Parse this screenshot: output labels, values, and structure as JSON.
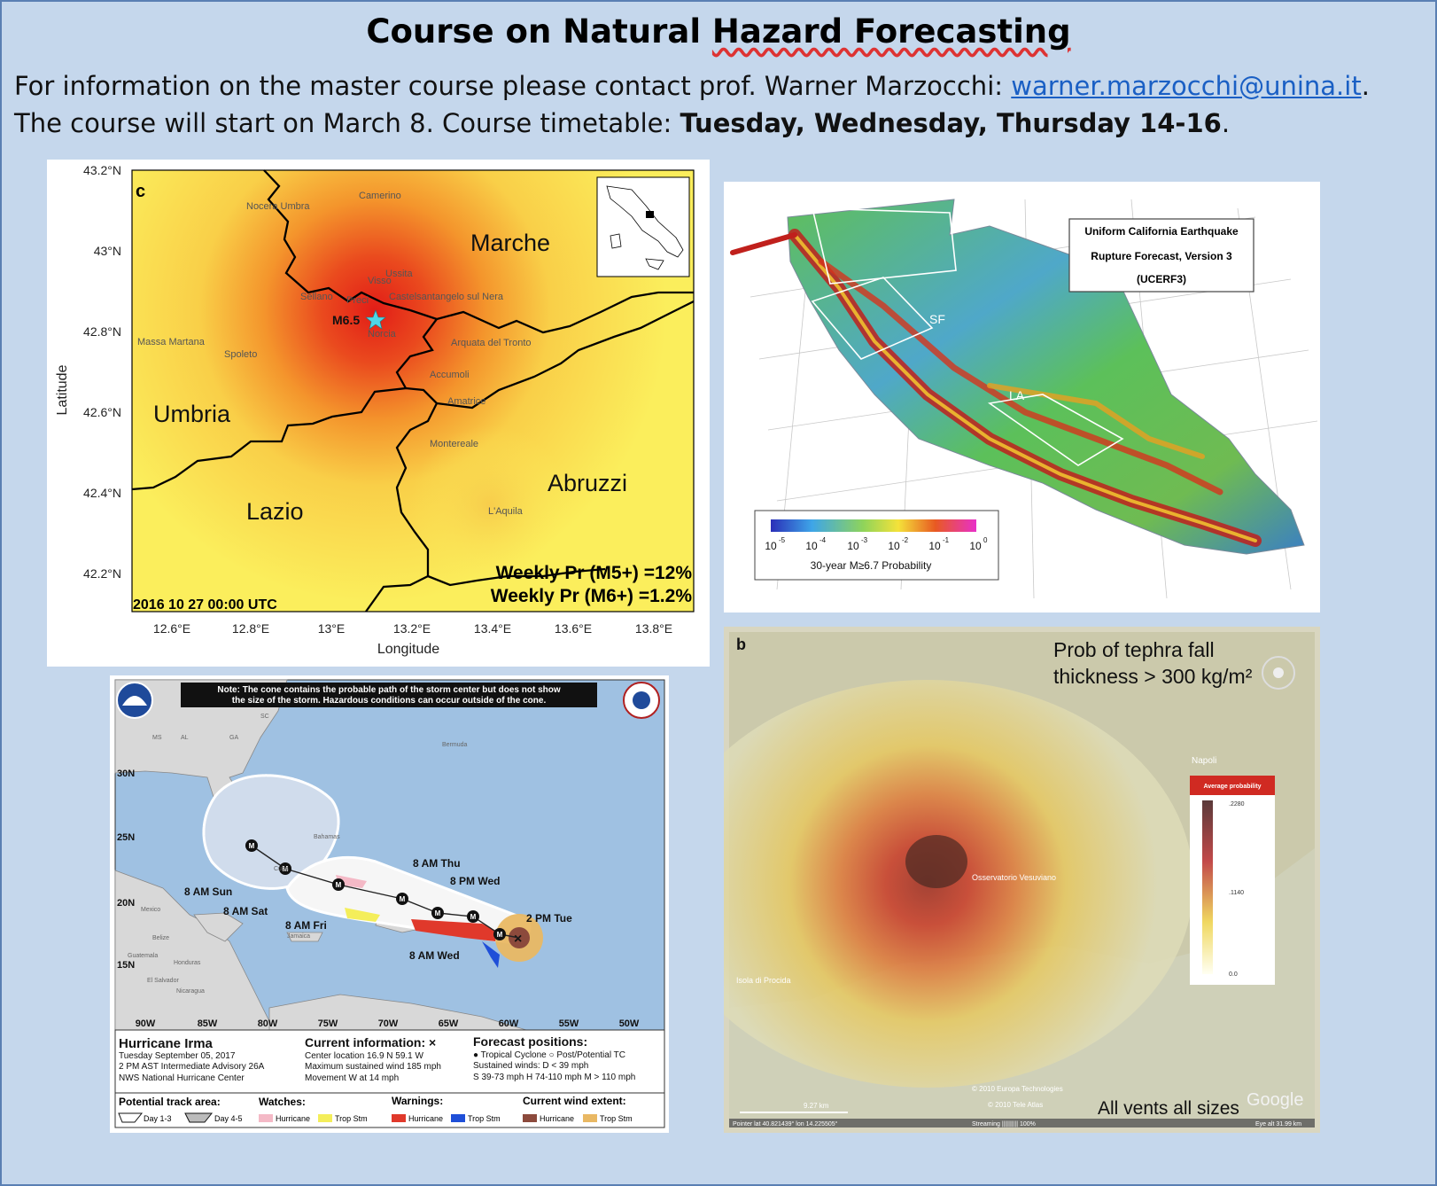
{
  "header": {
    "title_part1": "Course on Natural ",
    "title_part2": "Hazard Forecasting",
    "info_text": "For information on the master course please contact prof. Warner Marzocchi: ",
    "email": "warner.marzocchi@unina.it",
    "info_end": ".",
    "start_text": "The course will start on March 8. Course timetable: ",
    "timetable": "Tuesday, Wednesday, Thursday 14-16",
    "start_end": "."
  },
  "italy_map": {
    "panel_letter": "c",
    "xlabel": "Longitude",
    "ylabel": "Latitude",
    "lat_ticks": [
      "43.2°N",
      "43°N",
      "42.8°N",
      "42.6°N",
      "42.4°N",
      "42.2°N"
    ],
    "lon_ticks": [
      "12.6°E",
      "12.8°E",
      "13°E",
      "13.2°E",
      "13.4°E",
      "13.6°E",
      "13.8°E"
    ],
    "regions": [
      "Marche",
      "Umbria",
      "Lazio",
      "Abruzzi"
    ],
    "towns": [
      "Camerino",
      "Nocera Umbra",
      "Ussita",
      "Visso",
      "Sellano",
      "Preci",
      "Castelsantangelo sul Nera",
      "Norcia",
      "Massa Martana",
      "Spoleto",
      "Arquata del Tronto",
      "Accumoli",
      "Amatrice",
      "Montereale",
      "L'Aquila"
    ],
    "event_label": "M6.5",
    "prob1": "Weekly Pr (M5+) =12%",
    "prob2": "Weekly Pr (M6+) =1.2%",
    "date": "2016 10 27 00:00 UTC",
    "colors": {
      "low": "#fbee5c",
      "high": "#e8261c",
      "star": "#4fd6e6"
    }
  },
  "california_map": {
    "legend_title": "Uniform California Earthquake Rupture Forecast, Version 3 (UCERF3)",
    "legend_lines": [
      "Uniform California Earthquake",
      "Rupture Forecast, Version 3",
      "(UCERF3)"
    ],
    "labels": [
      "SF",
      "LA"
    ],
    "colorbar_ticks": [
      "10",
      "10",
      "10",
      "10",
      "10",
      "10"
    ],
    "colorbar_exps": [
      "-5",
      "-4",
      "-3",
      "-2",
      "-1",
      "0"
    ],
    "colorbar_label": "30-year M≥6.7 Probability"
  },
  "hurricane_map": {
    "note_line1": "Note: The cone contains the probable path of the storm center but does not show",
    "note_line2": "the size of the storm. Hazardous conditions can occur outside of the cone.",
    "lat_labels": [
      "30N",
      "25N",
      "20N",
      "15N"
    ],
    "lon_labels": [
      "90W",
      "85W",
      "80W",
      "75W",
      "70W",
      "65W",
      "60W",
      "55W",
      "50W"
    ],
    "state_labels": [
      "SC",
      "GA",
      "AL",
      "MS"
    ],
    "place_labels": [
      "Bermuda",
      "Bahamas",
      "Cuba",
      "Jamaica",
      "Mexico",
      "Belize",
      "Guatemala",
      "Honduras",
      "El Salvador",
      "Nicaragua"
    ],
    "forecast_labels": [
      "8 AM Thu",
      "8 PM Wed",
      "2 PM Tue",
      "8 AM Wed",
      "8 AM Sun",
      "8 AM Sat",
      "8 AM Fri"
    ],
    "storm_name": "Hurricane Irma",
    "info_lines": [
      "Tuesday September 05, 2017",
      "2 PM AST Intermediate Advisory 26A",
      "NWS National Hurricane Center"
    ],
    "current_info_title": "Current information: ×",
    "current_info_lines": [
      "Center location 16.9 N 59.1 W",
      "Maximum sustained wind 185 mph",
      "Movement W at 14 mph"
    ],
    "forecast_title": "Forecast positions:",
    "forecast_lines": [
      "● Tropical Cyclone   ○ Post/Potential TC",
      "Sustained winds:       D < 39 mph",
      "S 39-73 mph  H 74-110 mph  M > 110 mph"
    ],
    "legend": {
      "track_title": "Potential track area:",
      "track_items": [
        "Day 1-3",
        "Day 4-5"
      ],
      "watches_title": "Watches:",
      "watches_items": [
        "Hurricane",
        "Trop Stm"
      ],
      "warnings_title": "Warnings:",
      "warnings_items": [
        "Hurricane",
        "Trop Stm"
      ],
      "wind_title": "Current wind extent:",
      "wind_items": [
        "Hurricane",
        "Trop Stm"
      ]
    },
    "colors": {
      "ocean": "#9fc1e2",
      "land": "#d8d8d8",
      "watch_hurr": "#f4b9c6",
      "watch_ts": "#f4ee5a",
      "warn_hurr": "#e0392b",
      "warn_ts": "#1f4fd8",
      "wind_hurr": "#8c4a3c",
      "wind_ts": "#e9b863"
    }
  },
  "tephra_map": {
    "panel_letter": "b",
    "title_line1": "Prob of tephra fall",
    "title_line2": "thickness > 300 kg/m²",
    "napoli": "Napoli",
    "colorbar_title": "Average probability",
    "colorbar_ticks": [
      ".2280",
      ".1140",
      "0.0"
    ],
    "observatory": "Osservatorio Vesuviano",
    "procida": "Isola di Procida",
    "footer": "All vents all sizes",
    "google": "Google",
    "copyright1": "© 2010 Europa Technologies",
    "copyright2": "© 2010 Tele Atlas",
    "scale": "9.27 km",
    "status_pointer": "Pointer   lat  40.821439°    lon  14.225505°",
    "status_streaming": "Streaming |||||||||| 100%",
    "status_eye": "Eye alt    31.99 km"
  }
}
